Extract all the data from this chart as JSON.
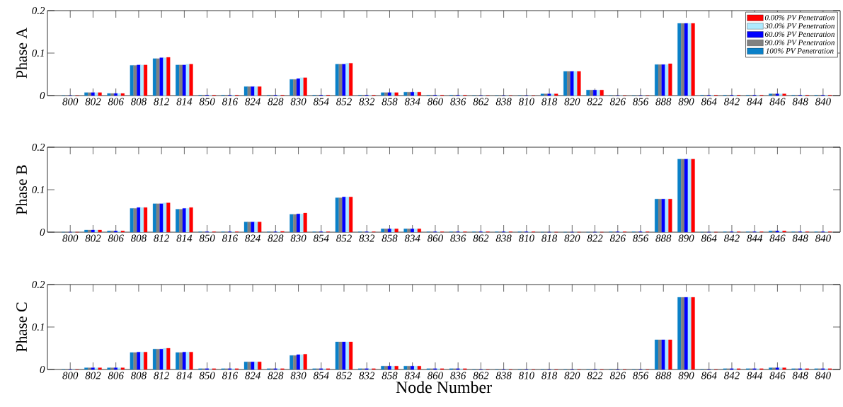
{
  "chart_data": [
    {
      "type": "bar",
      "ylabel": "Phase A",
      "categories": [
        "800",
        "802",
        "806",
        "808",
        "812",
        "814",
        "850",
        "816",
        "824",
        "828",
        "830",
        "854",
        "852",
        "832",
        "858",
        "834",
        "860",
        "836",
        "862",
        "838",
        "810",
        "818",
        "820",
        "822",
        "826",
        "856",
        "888",
        "890",
        "864",
        "842",
        "844",
        "846",
        "848",
        "840"
      ],
      "ylim": [
        0,
        0.2
      ],
      "yticks": [
        0,
        0.1,
        0.2
      ],
      "legend": "top right",
      "grid": false,
      "series": [
        {
          "name": "100%  PV Penetration",
          "color": "#0a80c8",
          "values": [
            0,
            0.007,
            0.005,
            0.071,
            0.087,
            0.072,
            0.001,
            0.001,
            0.021,
            0.001,
            0.038,
            0.001,
            0.074,
            0.001,
            0.007,
            0.008,
            0.001,
            0.001,
            0,
            0,
            0,
            0.004,
            0.057,
            0.013,
            0,
            0,
            0.073,
            0.17,
            0.001,
            0.001,
            0.001,
            0.004,
            0.001,
            0.001
          ]
        },
        {
          "name": "90.0% PV Penetration",
          "color": "#808080",
          "values": [
            0,
            0.007,
            0.005,
            0.071,
            0.087,
            0.072,
            0.001,
            0.001,
            0.021,
            0.001,
            0.038,
            0.001,
            0.074,
            0.001,
            0.007,
            0.008,
            0.001,
            0.001,
            0,
            0,
            0,
            0.004,
            0.057,
            0.013,
            0,
            0,
            0.073,
            0.17,
            0.001,
            0.001,
            0.001,
            0.004,
            0.001,
            0.001
          ]
        },
        {
          "name": "60.0% PV Penetration",
          "color": "#0000ff",
          "values": [
            0,
            0.007,
            0.005,
            0.072,
            0.089,
            0.072,
            0.001,
            0.001,
            0.021,
            0.001,
            0.04,
            0.001,
            0.074,
            0.001,
            0.007,
            0.008,
            0.001,
            0.001,
            0,
            0,
            0,
            0.004,
            0.057,
            0.013,
            0,
            0,
            0.073,
            0.17,
            0.001,
            0.001,
            0.001,
            0.004,
            0.001,
            0.001
          ]
        },
        {
          "name": "30.0% PV Penetration",
          "color": "#aeeaff",
          "values": [
            0,
            0.007,
            0.005,
            0.072,
            0.089,
            0.074,
            0.001,
            0.001,
            0.021,
            0.001,
            0.042,
            0.001,
            0.076,
            0.001,
            0.007,
            0.008,
            0.001,
            0.001,
            0,
            0,
            0,
            0.004,
            0.057,
            0.013,
            0,
            0,
            0.073,
            0.17,
            0.001,
            0.001,
            0.001,
            0.004,
            0.001,
            0.001
          ]
        },
        {
          "name": "0.00% PV Penetration",
          "color": "#ff0000",
          "values": [
            0,
            0.007,
            0.005,
            0.072,
            0.09,
            0.074,
            0.001,
            0.001,
            0.021,
            0.001,
            0.042,
            0.001,
            0.076,
            0.001,
            0.007,
            0.008,
            0.001,
            0.001,
            0,
            0,
            0,
            0.004,
            0.057,
            0.013,
            0,
            0,
            0.075,
            0.17,
            0.001,
            0.001,
            0.001,
            0.004,
            0.001,
            0.001
          ]
        }
      ]
    },
    {
      "type": "bar",
      "ylabel": "Phase B",
      "categories": [
        "800",
        "802",
        "806",
        "808",
        "812",
        "814",
        "850",
        "816",
        "824",
        "828",
        "830",
        "854",
        "852",
        "832",
        "858",
        "834",
        "860",
        "836",
        "862",
        "838",
        "810",
        "818",
        "820",
        "822",
        "826",
        "856",
        "888",
        "890",
        "864",
        "842",
        "844",
        "846",
        "848",
        "840"
      ],
      "ylim": [
        0,
        0.2
      ],
      "yticks": [
        0,
        0.1,
        0.2
      ],
      "grid": false,
      "series": [
        {
          "color": "#0a80c8",
          "values": [
            0,
            0.005,
            0.003,
            0.056,
            0.067,
            0.054,
            0.001,
            0.001,
            0.024,
            0.001,
            0.042,
            0.001,
            0.081,
            0.001,
            0.008,
            0.008,
            0.001,
            0.001,
            0.001,
            0.001,
            0.001,
            0,
            0,
            0,
            0.001,
            0.001,
            0.078,
            0.172,
            0,
            0.001,
            0.001,
            0.003,
            0.001,
            0.001
          ]
        },
        {
          "color": "#808080",
          "values": [
            0,
            0.005,
            0.003,
            0.056,
            0.067,
            0.054,
            0.001,
            0.001,
            0.024,
            0.001,
            0.042,
            0.001,
            0.081,
            0.001,
            0.008,
            0.008,
            0.001,
            0.001,
            0.001,
            0.001,
            0.001,
            0,
            0,
            0,
            0.001,
            0.001,
            0.078,
            0.172,
            0,
            0.001,
            0.001,
            0.003,
            0.001,
            0.001
          ]
        },
        {
          "color": "#0000ff",
          "values": [
            0,
            0.005,
            0.003,
            0.058,
            0.067,
            0.056,
            0.001,
            0.001,
            0.024,
            0.001,
            0.043,
            0.001,
            0.083,
            0.001,
            0.008,
            0.008,
            0.001,
            0.001,
            0.001,
            0.001,
            0.001,
            0,
            0,
            0,
            0.001,
            0.001,
            0.078,
            0.172,
            0,
            0.001,
            0.001,
            0.003,
            0.001,
            0.001
          ]
        },
        {
          "color": "#aeeaff",
          "values": [
            0,
            0.005,
            0.003,
            0.058,
            0.069,
            0.056,
            0.001,
            0.001,
            0.024,
            0.002,
            0.043,
            0.001,
            0.083,
            0.001,
            0.008,
            0.008,
            0.001,
            0.001,
            0.001,
            0.001,
            0.001,
            0,
            0,
            0,
            0.001,
            0.001,
            0.078,
            0.172,
            0,
            0.001,
            0.001,
            0.003,
            0.001,
            0.001
          ]
        },
        {
          "color": "#ff0000",
          "values": [
            0,
            0.005,
            0.003,
            0.058,
            0.069,
            0.058,
            0.001,
            0.001,
            0.024,
            0.002,
            0.045,
            0.001,
            0.083,
            0.001,
            0.008,
            0.008,
            0.001,
            0.001,
            0.001,
            0.001,
            0.001,
            0,
            0,
            0,
            0.001,
            0.001,
            0.078,
            0.172,
            0,
            0.001,
            0.001,
            0.003,
            0.001,
            0.001
          ]
        }
      ]
    },
    {
      "type": "bar",
      "ylabel": "Phase C",
      "xlabel": "Node Number",
      "categories": [
        "800",
        "802",
        "806",
        "808",
        "812",
        "814",
        "850",
        "816",
        "824",
        "828",
        "830",
        "854",
        "852",
        "832",
        "858",
        "834",
        "860",
        "836",
        "862",
        "838",
        "810",
        "818",
        "820",
        "822",
        "826",
        "856",
        "888",
        "890",
        "864",
        "842",
        "844",
        "846",
        "848",
        "840"
      ],
      "ylim": [
        0,
        0.2
      ],
      "yticks": [
        0,
        0.1,
        0.2
      ],
      "grid": false,
      "series": [
        {
          "color": "#0a80c8",
          "values": [
            0,
            0.004,
            0.004,
            0.04,
            0.048,
            0.04,
            0.002,
            0.002,
            0.018,
            0.002,
            0.033,
            0.002,
            0.065,
            0.002,
            0.008,
            0.008,
            0.002,
            0.002,
            0,
            0,
            0,
            0,
            0,
            0,
            0,
            0,
            0.07,
            0.17,
            0,
            0.002,
            0.002,
            0.004,
            0.002,
            0.002
          ]
        },
        {
          "color": "#808080",
          "values": [
            0,
            0.004,
            0.004,
            0.04,
            0.048,
            0.04,
            0.002,
            0.002,
            0.018,
            0.002,
            0.033,
            0.002,
            0.065,
            0.002,
            0.008,
            0.008,
            0.002,
            0.002,
            0,
            0,
            0,
            0,
            0,
            0,
            0,
            0,
            0.07,
            0.17,
            0,
            0.002,
            0.002,
            0.004,
            0.002,
            0.002
          ]
        },
        {
          "color": "#0000ff",
          "values": [
            0,
            0.004,
            0.004,
            0.041,
            0.048,
            0.041,
            0.002,
            0.002,
            0.018,
            0.002,
            0.035,
            0.002,
            0.065,
            0.002,
            0.008,
            0.008,
            0.002,
            0.002,
            0,
            0,
            0,
            0,
            0,
            0,
            0,
            0,
            0.07,
            0.17,
            0,
            0.002,
            0.002,
            0.004,
            0.002,
            0.002
          ]
        },
        {
          "color": "#aeeaff",
          "values": [
            0,
            0.004,
            0.004,
            0.041,
            0.05,
            0.041,
            0.002,
            0.002,
            0.018,
            0.002,
            0.035,
            0.002,
            0.065,
            0.002,
            0.008,
            0.008,
            0.002,
            0.002,
            0,
            0,
            0,
            0,
            0,
            0,
            0,
            0,
            0.07,
            0.17,
            0,
            0.002,
            0.002,
            0.004,
            0.002,
            0.002
          ]
        },
        {
          "color": "#ff0000",
          "values": [
            0,
            0.004,
            0.004,
            0.041,
            0.05,
            0.041,
            0.002,
            0.002,
            0.018,
            0.002,
            0.036,
            0.002,
            0.065,
            0.002,
            0.008,
            0.008,
            0.002,
            0.002,
            0,
            0,
            0,
            0,
            0,
            0,
            0,
            0,
            0.07,
            0.17,
            0,
            0.002,
            0.002,
            0.004,
            0.002,
            0.002
          ]
        }
      ]
    }
  ]
}
